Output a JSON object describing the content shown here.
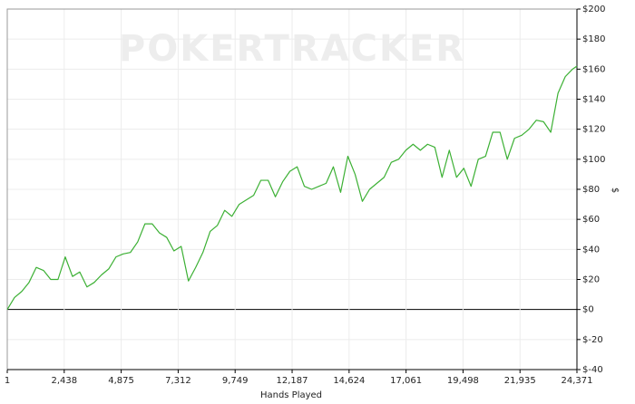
{
  "chart_data": {
    "type": "line",
    "watermark": "POKERTRACKER",
    "x_label": "Hands Played",
    "y_label": "$",
    "x": [
      1,
      311,
      621,
      931,
      1241,
      1551,
      1861,
      2171,
      2481,
      2791,
      3101,
      3411,
      3721,
      4031,
      4341,
      4651,
      4961,
      5271,
      5581,
      5891,
      6201,
      6511,
      6821,
      7131,
      7441,
      7751,
      8061,
      8371,
      8681,
      8991,
      9301,
      9611,
      9921,
      10231,
      10541,
      10851,
      11161,
      11471,
      11781,
      12091,
      12401,
      12711,
      13021,
      13331,
      13641,
      13951,
      14261,
      14571,
      14881,
      15191,
      15501,
      15811,
      16121,
      16431,
      16741,
      17051,
      17361,
      17671,
      17981,
      18291,
      18601,
      18911,
      19221,
      19531,
      19841,
      20151,
      20461,
      20771,
      21081,
      21391,
      21701,
      22011,
      22321,
      22631,
      22941,
      23251,
      23561,
      23871,
      24181,
      24371
    ],
    "values": [
      0,
      8,
      12,
      18,
      28,
      26,
      20,
      20,
      35,
      22,
      25,
      15,
      18,
      23,
      27,
      35,
      37,
      38,
      45,
      57,
      57,
      51,
      48,
      39,
      42,
      19,
      28,
      38,
      52,
      56,
      66,
      62,
      70,
      73,
      76,
      86,
      86,
      75,
      85,
      92,
      95,
      82,
      80,
      82,
      84,
      95,
      78,
      102,
      90,
      72,
      80,
      84,
      88,
      98,
      100,
      106,
      110,
      106,
      110,
      108,
      88,
      106,
      88,
      94,
      82,
      100,
      102,
      118,
      118,
      100,
      114,
      116,
      120,
      126,
      125,
      118,
      144,
      155,
      160,
      162
    ],
    "color": "#3cb034",
    "xlim": [
      1,
      24371
    ],
    "xticks": [
      1,
      {
        "value": 2438,
        "label": "2,438"
      },
      {
        "value": 4875,
        "label": "4,875"
      },
      {
        "value": 7312,
        "label": "7,312"
      },
      {
        "value": 9749,
        "label": "9,749"
      },
      {
        "value": 12187,
        "label": "12,187"
      },
      {
        "value": 14624,
        "label": "14,624"
      },
      {
        "value": 17061,
        "label": "17,061"
      },
      {
        "value": 19498,
        "label": "19,498"
      },
      {
        "value": 21935,
        "label": "21,935"
      },
      {
        "value": 24371,
        "label": "24,371"
      }
    ],
    "ylim": [
      -40,
      200
    ],
    "yticks": [
      {
        "value": -40,
        "label": "$-40"
      },
      {
        "value": -20,
        "label": "$-20"
      },
      {
        "value": 0,
        "label": "$0"
      },
      {
        "value": 20,
        "label": "$20"
      },
      {
        "value": 40,
        "label": "$40"
      },
      {
        "value": 60,
        "label": "$60"
      },
      {
        "value": 80,
        "label": "$80"
      },
      {
        "value": 100,
        "label": "$100"
      },
      {
        "value": 120,
        "label": "$120"
      },
      {
        "value": 140,
        "label": "$140"
      },
      {
        "value": 160,
        "label": "$160"
      },
      {
        "value": 180,
        "label": "$180"
      },
      {
        "value": 200,
        "label": "$200"
      }
    ],
    "grid": true
  }
}
